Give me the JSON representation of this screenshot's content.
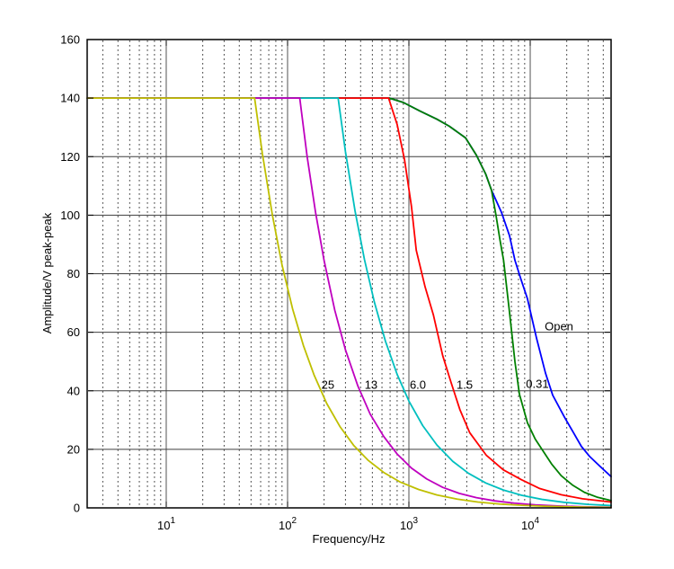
{
  "chart_data": {
    "type": "line",
    "title": "",
    "xlabel": "Frequency/Hz",
    "ylabel": "Amplitude/V peak-peak",
    "x_scale": "log",
    "xlim": [
      2.23,
      46400
    ],
    "ylim": [
      0,
      160
    ],
    "grid": "on",
    "legend_position": "inline-labels",
    "y_ticks": [
      0,
      20,
      40,
      60,
      80,
      100,
      120,
      140,
      160
    ],
    "y_tick_labels": [
      "0",
      "20",
      "40",
      "60",
      "80",
      "100",
      "120",
      "140",
      "160"
    ],
    "x_major_ticks": [
      {
        "value": 10,
        "base": "10",
        "exp": "1"
      },
      {
        "value": 100,
        "base": "10",
        "exp": "2"
      },
      {
        "value": 1000,
        "base": "10",
        "exp": "3"
      },
      {
        "value": 10000,
        "base": "10",
        "exp": "4"
      }
    ],
    "series": [
      {
        "label": "Open",
        "color": "#0000ff",
        "label_at": {
          "f": 17260,
          "A": 62.0
        },
        "points": [
          [
            2.23,
            140
          ],
          [
            500,
            140
          ],
          [
            690,
            140
          ],
          [
            900,
            138.5
          ],
          [
            1230,
            135.6
          ],
          [
            1700,
            132.8
          ],
          [
            2150,
            130.4
          ],
          [
            2930,
            126.4
          ],
          [
            3600,
            120.5
          ],
          [
            4300,
            114
          ],
          [
            4800,
            108.5
          ],
          [
            5790,
            101
          ],
          [
            6750,
            93
          ],
          [
            7480,
            84.6
          ],
          [
            8400,
            78
          ],
          [
            9480,
            71.5
          ],
          [
            11270,
            58
          ],
          [
            13370,
            46
          ],
          [
            15320,
            38.5
          ],
          [
            19150,
            31
          ],
          [
            22500,
            26
          ],
          [
            26400,
            21
          ],
          [
            31000,
            17.5
          ],
          [
            37150,
            14.4
          ],
          [
            46400,
            10.7
          ]
        ]
      },
      {
        "label": "0.31",
        "color": "#008000",
        "label_at": {
          "f": 11450,
          "A": 42.4
        },
        "points": [
          [
            2.23,
            140
          ],
          [
            500,
            140
          ],
          [
            690,
            140
          ],
          [
            900,
            138.5
          ],
          [
            1230,
            135.6
          ],
          [
            1700,
            132.8
          ],
          [
            2150,
            130.4
          ],
          [
            2930,
            126.4
          ],
          [
            3600,
            120.5
          ],
          [
            4300,
            114
          ],
          [
            4800,
            108.5
          ],
          [
            5220,
            100
          ],
          [
            5630,
            91.6
          ],
          [
            6030,
            84.6
          ],
          [
            6700,
            68
          ],
          [
            7480,
            50
          ],
          [
            8150,
            38.8
          ],
          [
            9500,
            29
          ],
          [
            11000,
            23.5
          ],
          [
            12270,
            20.5
          ],
          [
            15000,
            15
          ],
          [
            18000,
            11
          ],
          [
            22300,
            7.8
          ],
          [
            28000,
            5.3
          ],
          [
            36000,
            3.6
          ],
          [
            46400,
            2.5
          ]
        ]
      },
      {
        "label": "1.5",
        "color": "#ff0000",
        "label_at": {
          "f": 2880,
          "A": 42.1
        },
        "points": [
          [
            2.23,
            140
          ],
          [
            500,
            140
          ],
          [
            680,
            140
          ],
          [
            800,
            131
          ],
          [
            920,
            119
          ],
          [
            1050,
            103
          ],
          [
            1150,
            88
          ],
          [
            1360,
            75.5
          ],
          [
            1590,
            66
          ],
          [
            1900,
            52
          ],
          [
            2220,
            43
          ],
          [
            2630,
            33.6
          ],
          [
            3170,
            25.7
          ],
          [
            4340,
            18
          ],
          [
            6000,
            13
          ],
          [
            8400,
            9.7
          ],
          [
            12000,
            6.6
          ],
          [
            18000,
            4.5
          ],
          [
            27000,
            3.1
          ],
          [
            46400,
            2.0
          ]
        ]
      },
      {
        "label": "6.0",
        "color": "#00bfbf",
        "label_at": {
          "f": 1186,
          "A": 42.1
        },
        "points": [
          [
            2.23,
            140
          ],
          [
            190,
            140
          ],
          [
            261,
            140
          ],
          [
            300,
            121.7
          ],
          [
            360,
            101.4
          ],
          [
            430,
            84.9
          ],
          [
            520,
            70.2
          ],
          [
            640,
            57
          ],
          [
            800,
            45.6
          ],
          [
            1000,
            36.5
          ],
          [
            1300,
            28.1
          ],
          [
            1700,
            21.5
          ],
          [
            2300,
            15.9
          ],
          [
            3100,
            11.8
          ],
          [
            4300,
            8.5
          ],
          [
            6000,
            6.1
          ],
          [
            8500,
            4.3
          ],
          [
            12500,
            2.9
          ],
          [
            19000,
            1.9
          ],
          [
            30000,
            1.2
          ],
          [
            46400,
            0.79
          ]
        ]
      },
      {
        "label": "13",
        "color": "#bf00bf",
        "label_at": {
          "f": 488,
          "A": 42.1
        },
        "points": [
          [
            2.23,
            140
          ],
          [
            100,
            140
          ],
          [
            126,
            140
          ],
          [
            145,
            120
          ],
          [
            170,
            101
          ],
          [
            200,
            84.5
          ],
          [
            245,
            67.5
          ],
          [
            300,
            54
          ],
          [
            380,
            41.6
          ],
          [
            480,
            32
          ],
          [
            620,
            24.4
          ],
          [
            800,
            18.4
          ],
          [
            1050,
            13.6
          ],
          [
            1400,
            9.9
          ],
          [
            1900,
            7.0
          ],
          [
            2600,
            4.96
          ],
          [
            3600,
            3.5
          ],
          [
            5100,
            2.4
          ],
          [
            7400,
            1.6
          ],
          [
            11000,
            1.04
          ],
          [
            17000,
            0.64
          ],
          [
            27000,
            0.39
          ],
          [
            46400,
            0.21
          ]
        ]
      },
      {
        "label": "25",
        "color": "#bfbf00",
        "label_at": {
          "f": 215,
          "A": 42.1
        },
        "points": [
          [
            2.23,
            140
          ],
          [
            40,
            140
          ],
          [
            53.5,
            140
          ],
          [
            62,
            121
          ],
          [
            75,
            100
          ],
          [
            90,
            83
          ],
          [
            110,
            68
          ],
          [
            135,
            55.5
          ],
          [
            165,
            45.5
          ],
          [
            210,
            35.7
          ],
          [
            270,
            27.8
          ],
          [
            350,
            21.4
          ],
          [
            460,
            16.3
          ],
          [
            620,
            12.1
          ],
          [
            850,
            8.8
          ],
          [
            1200,
            6.3
          ],
          [
            1700,
            4.4
          ],
          [
            2500,
            3.0
          ],
          [
            3700,
            2.0
          ],
          [
            5600,
            1.3
          ],
          [
            8500,
            0.88
          ],
          [
            13000,
            0.58
          ],
          [
            21000,
            0.36
          ],
          [
            33000,
            0.23
          ],
          [
            46400,
            0.16
          ]
        ]
      }
    ]
  },
  "style": {
    "grid_color": "#3f3f3f",
    "box_color": "#000000",
    "background": "#ffffff"
  }
}
